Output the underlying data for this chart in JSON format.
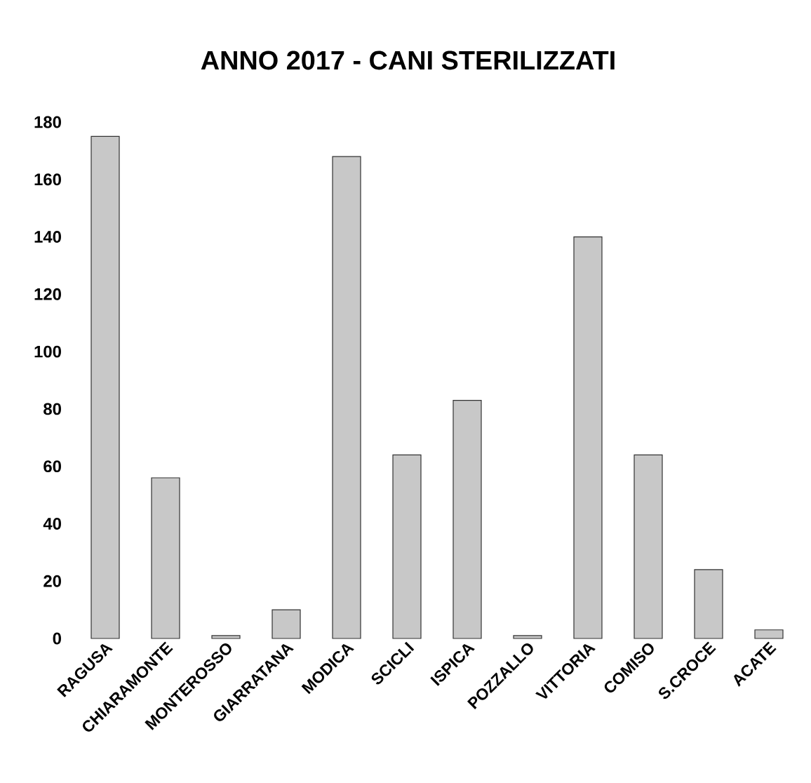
{
  "chart_data": {
    "type": "bar",
    "title": "ANNO 2017 - CANI STERILIZZATI",
    "categories": [
      "RAGUSA",
      "CHIARAMONTE",
      "MONTEROSSO",
      "GIARRATANA",
      "MODICA",
      "SCICLI",
      "ISPICA",
      "POZZALLO",
      "VITTORIA",
      "COMISO",
      "S.CROCE",
      "ACATE"
    ],
    "values": [
      175,
      56,
      1,
      10,
      168,
      64,
      83,
      1,
      140,
      64,
      24,
      3
    ],
    "color": "#c8c8c8",
    "ylim": [
      0,
      180
    ],
    "yticks": [
      0,
      20,
      40,
      60,
      80,
      100,
      120,
      140,
      160,
      180
    ]
  }
}
